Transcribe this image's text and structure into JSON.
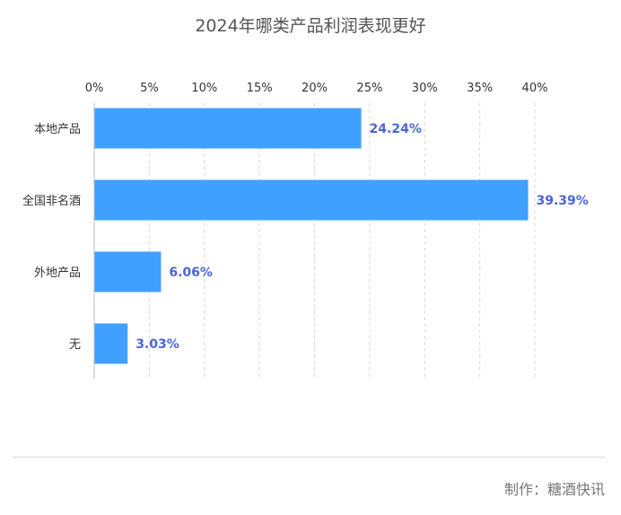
{
  "page": {
    "title": "2024年哪类产品利润表现更好",
    "footer_credit": "制作：糖酒快讯"
  },
  "chart_data": {
    "type": "bar",
    "orientation": "horizontal",
    "title": "2024年哪类产品利润表现更好",
    "categories": [
      "本地产品",
      "全国非名酒",
      "外地产品",
      "无"
    ],
    "values": [
      24.24,
      39.39,
      6.06,
      3.03
    ],
    "value_labels": [
      "24.24%",
      "39.39%",
      "6.06%",
      "3.03%"
    ],
    "xlim": [
      0,
      40
    ],
    "x_ticks": [
      0,
      5,
      10,
      15,
      20,
      25,
      30,
      35,
      40
    ],
    "x_tick_labels": [
      "0%",
      "5%",
      "10%",
      "15%",
      "20%",
      "25%",
      "30%",
      "35%",
      "40%"
    ],
    "axis_position": "top",
    "grid": true,
    "bar_color": "#3fa0ff",
    "label_color": "#4a66d8"
  }
}
